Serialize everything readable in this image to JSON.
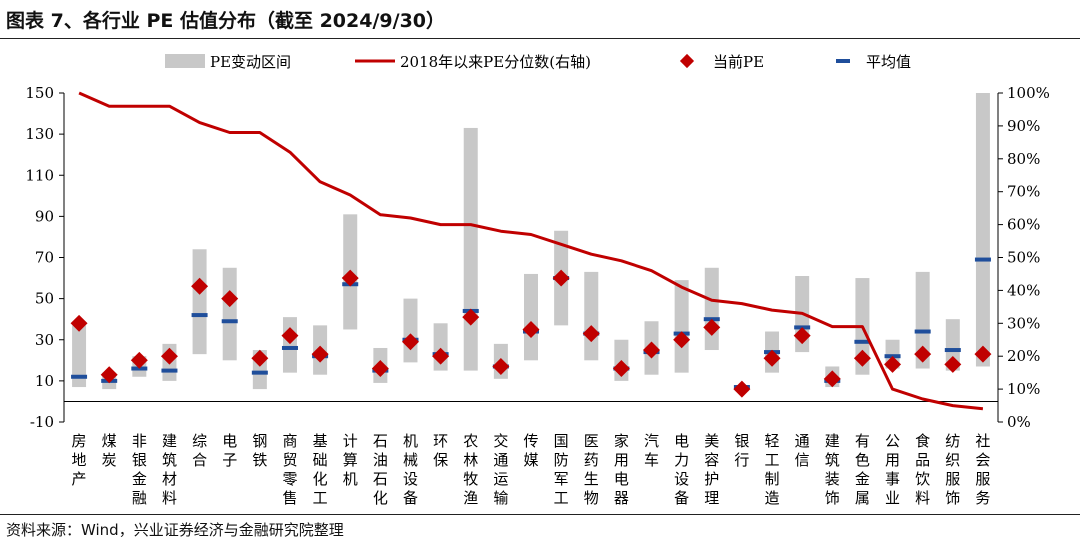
{
  "page": {
    "title": "图表 7、各行业 PE 估值分布（截至 2024/9/30）",
    "source": "资料来源：Wind，兴业证券经济与金融研究院整理"
  },
  "chart_data": {
    "type": "bar",
    "categories": [
      "房地产",
      "煤炭",
      "非银金融",
      "建筑材料",
      "综合",
      "电子",
      "钢铁",
      "商贸零售",
      "基础化工",
      "计算机",
      "石油石化",
      "机械设备",
      "环保",
      "农林牧渔",
      "交通运输",
      "传媒",
      "国防军工",
      "医药生物",
      "家用电器",
      "汽车",
      "电力设备",
      "美容护理",
      "银行",
      "轻工制造",
      "通信",
      "建筑装饰",
      "有色金属",
      "公用事业",
      "食品饮料",
      "纺织服饰",
      "社会服务"
    ],
    "left_axis": {
      "min": -10,
      "max": 150,
      "ticks": [
        -10,
        10,
        30,
        50,
        70,
        90,
        110,
        130,
        150
      ]
    },
    "right_axis": {
      "min": 0,
      "max": 100,
      "ticks": [
        "0%",
        "10%",
        "20%",
        "30%",
        "40%",
        "50%",
        "60%",
        "70%",
        "80%",
        "90%",
        "100%"
      ]
    },
    "legend": {
      "range": "PE变动区间",
      "line": "2018年以来PE分位数(右轴)",
      "current": "当前PE",
      "mean": "平均值"
    },
    "series": [
      {
        "name": "PE变动区间",
        "low": [
          7,
          6,
          12,
          10,
          23,
          20,
          6,
          14,
          13,
          35,
          9,
          19,
          15,
          15,
          11,
          20,
          37,
          20,
          10,
          13,
          14,
          25,
          5,
          14,
          24,
          7,
          13,
          16,
          16,
          15,
          17
        ],
        "high": [
          37,
          14,
          22,
          28,
          74,
          65,
          25,
          41,
          37,
          91,
          26,
          50,
          38,
          133,
          28,
          62,
          83,
          63,
          30,
          39,
          59,
          65,
          8,
          34,
          61,
          17,
          60,
          30,
          63,
          40,
          150
        ]
      },
      {
        "name": "2018年以来PE分位数(右轴)",
        "values": [
          100,
          96,
          96,
          96,
          91,
          88,
          88,
          82,
          73,
          69,
          63,
          62,
          60,
          60,
          58,
          57,
          54,
          51,
          49,
          46,
          41,
          37,
          36,
          34,
          33,
          29,
          29,
          10,
          7,
          5,
          4
        ]
      },
      {
        "name": "当前PE",
        "values": [
          38,
          13,
          20,
          22,
          56,
          50,
          21,
          32,
          23,
          60,
          16,
          29,
          22,
          41,
          17,
          35,
          60,
          33,
          16,
          25,
          30,
          36,
          6,
          21,
          32,
          11,
          21,
          18,
          23,
          18,
          23
        ]
      },
      {
        "name": "平均值",
        "values": [
          12,
          10,
          16,
          15,
          42,
          39,
          14,
          26,
          22,
          57,
          15,
          30,
          23,
          44,
          17,
          34,
          60,
          33,
          16,
          24,
          33,
          40,
          7,
          24,
          36,
          10,
          29,
          22,
          34,
          25,
          69
        ]
      }
    ],
    "colors": {
      "range": "#c8c8c8",
      "line": "#c00000",
      "current": "#c00000",
      "mean": "#1f4e9b"
    }
  }
}
